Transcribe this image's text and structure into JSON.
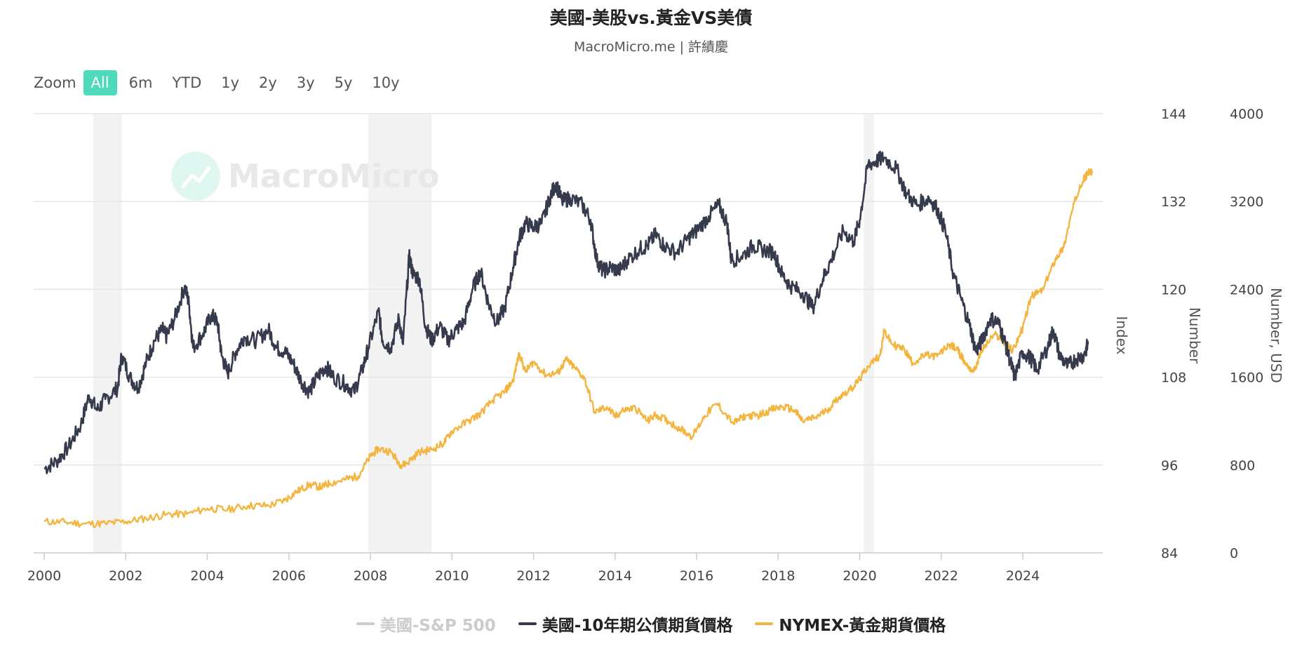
{
  "header": {
    "title": "美國-美股vs.黃金VS美債",
    "subtitle": "MacroMicro.me | 許績慶"
  },
  "watermark": {
    "text": "MacroMicro",
    "icon": "chart-logo-icon"
  },
  "zoom": {
    "label": "Zoom",
    "buttons": [
      "All",
      "6m",
      "YTD",
      "1y",
      "2y",
      "3y",
      "5y",
      "10y"
    ],
    "selected": "All"
  },
  "colors": {
    "treasury": "#363a4d",
    "gold": "#f3b53f",
    "sp500_hidden": "#cccccc",
    "recession": "#f2f2f2",
    "grid": "#e6e6e6",
    "zoom_active": "#4fdbbb"
  },
  "chart_data": {
    "type": "line",
    "title": "美國-美股vs.黃金VS美債",
    "subtitle": "MacroMicro.me | 許績慶",
    "x_range": [
      2000,
      2025.7
    ],
    "x_ticks": [
      "2000",
      "2002",
      "2004",
      "2006",
      "2008",
      "2010",
      "2012",
      "2014",
      "2016",
      "2018",
      "2020",
      "2022",
      "2024"
    ],
    "recession_bands": [
      [
        2001.2,
        2001.9
      ],
      [
        2007.95,
        2009.5
      ],
      [
        2020.1,
        2020.35
      ]
    ],
    "axes": [
      {
        "id": "index",
        "title": "Index",
        "range": [
          84,
          144
        ],
        "ticks": [
          "144",
          "132",
          "120",
          "108",
          "96",
          "84"
        ]
      },
      {
        "id": "number",
        "title": "Number",
        "range": [
          84,
          144
        ],
        "ticks": []
      },
      {
        "id": "usd",
        "title": "Number, USD",
        "range": [
          0,
          4000
        ],
        "ticks": [
          "4000",
          "3200",
          "2400",
          "1600",
          "800",
          "0"
        ]
      }
    ],
    "series": [
      {
        "name": "美國-S&P 500",
        "axis": "index",
        "visible": false,
        "points": []
      },
      {
        "name": "美國-10年期公債期貨價格",
        "axis": "number",
        "visible": true,
        "points": [
          [
            2000.0,
            95.5
          ],
          [
            2000.3,
            96.5
          ],
          [
            2000.6,
            98.5
          ],
          [
            2000.9,
            101.5
          ],
          [
            2001.1,
            105.5
          ],
          [
            2001.3,
            103.5
          ],
          [
            2001.5,
            105.0
          ],
          [
            2001.8,
            106.5
          ],
          [
            2001.9,
            111.0
          ],
          [
            2002.1,
            108.0
          ],
          [
            2002.3,
            106.5
          ],
          [
            2002.5,
            110.0
          ],
          [
            2002.7,
            113.0
          ],
          [
            2002.9,
            114.5
          ],
          [
            2003.0,
            113.5
          ],
          [
            2003.2,
            116.0
          ],
          [
            2003.45,
            120.5
          ],
          [
            2003.55,
            118.0
          ],
          [
            2003.65,
            112.0
          ],
          [
            2003.9,
            114.0
          ],
          [
            2004.1,
            116.5
          ],
          [
            2004.25,
            115.5
          ],
          [
            2004.35,
            111.0
          ],
          [
            2004.5,
            108.5
          ],
          [
            2004.7,
            111.5
          ],
          [
            2004.9,
            113.5
          ],
          [
            2005.2,
            113.0
          ],
          [
            2005.5,
            114.5
          ],
          [
            2005.7,
            112.0
          ],
          [
            2005.9,
            111.5
          ],
          [
            2006.1,
            110.0
          ],
          [
            2006.3,
            107.5
          ],
          [
            2006.5,
            106.0
          ],
          [
            2006.7,
            108.0
          ],
          [
            2006.9,
            109.5
          ],
          [
            2007.1,
            108.0
          ],
          [
            2007.4,
            107.0
          ],
          [
            2007.6,
            106.0
          ],
          [
            2007.8,
            109.0
          ],
          [
            2007.95,
            112.0
          ],
          [
            2008.2,
            117.0
          ],
          [
            2008.3,
            113.0
          ],
          [
            2008.5,
            112.0
          ],
          [
            2008.7,
            116.0
          ],
          [
            2008.8,
            112.5
          ],
          [
            2008.95,
            124.5
          ],
          [
            2009.05,
            122.0
          ],
          [
            2009.2,
            121.5
          ],
          [
            2009.35,
            115.0
          ],
          [
            2009.5,
            113.0
          ],
          [
            2009.7,
            115.0
          ],
          [
            2009.9,
            113.0
          ],
          [
            2010.1,
            114.5
          ],
          [
            2010.3,
            115.5
          ],
          [
            2010.5,
            120.0
          ],
          [
            2010.7,
            122.5
          ],
          [
            2010.9,
            118.0
          ],
          [
            2011.1,
            115.5
          ],
          [
            2011.3,
            117.5
          ],
          [
            2011.5,
            123.0
          ],
          [
            2011.65,
            127.0
          ],
          [
            2011.8,
            129.0
          ],
          [
            2012.0,
            128.5
          ],
          [
            2012.2,
            129.0
          ],
          [
            2012.4,
            132.5
          ],
          [
            2012.55,
            134.5
          ],
          [
            2012.7,
            132.0
          ],
          [
            2012.9,
            132.5
          ],
          [
            2013.2,
            131.5
          ],
          [
            2013.4,
            129.5
          ],
          [
            2013.55,
            124.0
          ],
          [
            2013.7,
            122.5
          ],
          [
            2013.9,
            123.0
          ],
          [
            2014.1,
            122.5
          ],
          [
            2014.3,
            124.0
          ],
          [
            2014.6,
            125.5
          ],
          [
            2014.8,
            126.0
          ],
          [
            2015.0,
            127.5
          ],
          [
            2015.2,
            126.0
          ],
          [
            2015.5,
            125.0
          ],
          [
            2015.8,
            127.0
          ],
          [
            2016.0,
            128.0
          ],
          [
            2016.3,
            130.0
          ],
          [
            2016.55,
            131.5
          ],
          [
            2016.75,
            129.0
          ],
          [
            2016.85,
            124.0
          ],
          [
            2017.1,
            124.5
          ],
          [
            2017.4,
            126.0
          ],
          [
            2017.6,
            125.5
          ],
          [
            2017.9,
            125.0
          ],
          [
            2018.1,
            122.0
          ],
          [
            2018.3,
            120.5
          ],
          [
            2018.6,
            119.5
          ],
          [
            2018.85,
            117.5
          ],
          [
            2019.1,
            121.5
          ],
          [
            2019.3,
            124.0
          ],
          [
            2019.6,
            128.0
          ],
          [
            2019.85,
            126.5
          ],
          [
            2020.0,
            129.5
          ],
          [
            2020.2,
            137.0
          ],
          [
            2020.4,
            137.5
          ],
          [
            2020.6,
            138.0
          ],
          [
            2020.9,
            136.5
          ],
          [
            2021.15,
            133.0
          ],
          [
            2021.4,
            131.5
          ],
          [
            2021.7,
            132.5
          ],
          [
            2021.9,
            131.0
          ],
          [
            2022.1,
            128.0
          ],
          [
            2022.3,
            122.0
          ],
          [
            2022.5,
            118.5
          ],
          [
            2022.7,
            115.0
          ],
          [
            2022.85,
            111.5
          ],
          [
            2023.0,
            113.0
          ],
          [
            2023.2,
            116.0
          ],
          [
            2023.4,
            115.5
          ],
          [
            2023.55,
            113.0
          ],
          [
            2023.7,
            110.0
          ],
          [
            2023.8,
            108.0
          ],
          [
            2024.0,
            111.5
          ],
          [
            2024.2,
            110.5
          ],
          [
            2024.35,
            109.0
          ],
          [
            2024.6,
            112.0
          ],
          [
            2024.75,
            114.5
          ],
          [
            2024.9,
            111.0
          ],
          [
            2025.1,
            109.5
          ],
          [
            2025.3,
            110.5
          ],
          [
            2025.5,
            111.0
          ],
          [
            2025.6,
            112.5
          ]
        ]
      },
      {
        "name": "NYMEX-黃金期貨價格",
        "axis": "usd",
        "visible": true,
        "points": [
          [
            2000.0,
            285
          ],
          [
            2000.5,
            280
          ],
          [
            2001.0,
            265
          ],
          [
            2001.5,
            268
          ],
          [
            2002.0,
            285
          ],
          [
            2002.5,
            315
          ],
          [
            2003.0,
            350
          ],
          [
            2003.5,
            355
          ],
          [
            2004.0,
            405
          ],
          [
            2004.5,
            395
          ],
          [
            2005.0,
            430
          ],
          [
            2005.5,
            430
          ],
          [
            2005.9,
            480
          ],
          [
            2006.2,
            560
          ],
          [
            2006.5,
            620
          ],
          [
            2006.8,
            600
          ],
          [
            2007.0,
            635
          ],
          [
            2007.4,
            670
          ],
          [
            2007.7,
            700
          ],
          [
            2008.0,
            880
          ],
          [
            2008.2,
            950
          ],
          [
            2008.5,
            920
          ],
          [
            2008.75,
            800
          ],
          [
            2008.9,
            820
          ],
          [
            2009.2,
            920
          ],
          [
            2009.5,
            940
          ],
          [
            2009.8,
            1000
          ],
          [
            2010.0,
            1110
          ],
          [
            2010.4,
            1200
          ],
          [
            2010.7,
            1270
          ],
          [
            2011.0,
            1390
          ],
          [
            2011.3,
            1470
          ],
          [
            2011.5,
            1570
          ],
          [
            2011.65,
            1820
          ],
          [
            2011.8,
            1650
          ],
          [
            2012.0,
            1740
          ],
          [
            2012.3,
            1620
          ],
          [
            2012.6,
            1640
          ],
          [
            2012.8,
            1760
          ],
          [
            2013.0,
            1690
          ],
          [
            2013.25,
            1590
          ],
          [
            2013.5,
            1280
          ],
          [
            2013.8,
            1330
          ],
          [
            2014.0,
            1240
          ],
          [
            2014.2,
            1300
          ],
          [
            2014.5,
            1320
          ],
          [
            2014.8,
            1200
          ],
          [
            2015.0,
            1260
          ],
          [
            2015.3,
            1200
          ],
          [
            2015.6,
            1130
          ],
          [
            2015.9,
            1060
          ],
          [
            2016.2,
            1250
          ],
          [
            2016.5,
            1360
          ],
          [
            2016.9,
            1180
          ],
          [
            2017.2,
            1250
          ],
          [
            2017.5,
            1250
          ],
          [
            2017.8,
            1300
          ],
          [
            2018.1,
            1330
          ],
          [
            2018.4,
            1300
          ],
          [
            2018.6,
            1200
          ],
          [
            2018.9,
            1230
          ],
          [
            2019.2,
            1300
          ],
          [
            2019.5,
            1420
          ],
          [
            2019.8,
            1500
          ],
          [
            2020.0,
            1580
          ],
          [
            2020.2,
            1700
          ],
          [
            2020.5,
            1800
          ],
          [
            2020.6,
            2020
          ],
          [
            2020.8,
            1900
          ],
          [
            2021.1,
            1850
          ],
          [
            2021.3,
            1730
          ],
          [
            2021.6,
            1800
          ],
          [
            2021.9,
            1790
          ],
          [
            2022.2,
            1900
          ],
          [
            2022.4,
            1850
          ],
          [
            2022.6,
            1720
          ],
          [
            2022.8,
            1650
          ],
          [
            2023.0,
            1850
          ],
          [
            2023.3,
            1990
          ],
          [
            2023.5,
            1940
          ],
          [
            2023.75,
            1840
          ],
          [
            2024.0,
            2050
          ],
          [
            2024.2,
            2330
          ],
          [
            2024.5,
            2400
          ],
          [
            2024.8,
            2680
          ],
          [
            2025.0,
            2780
          ],
          [
            2025.2,
            3100
          ],
          [
            2025.4,
            3350
          ],
          [
            2025.6,
            3460
          ],
          [
            2025.7,
            3480
          ]
        ]
      }
    ]
  }
}
